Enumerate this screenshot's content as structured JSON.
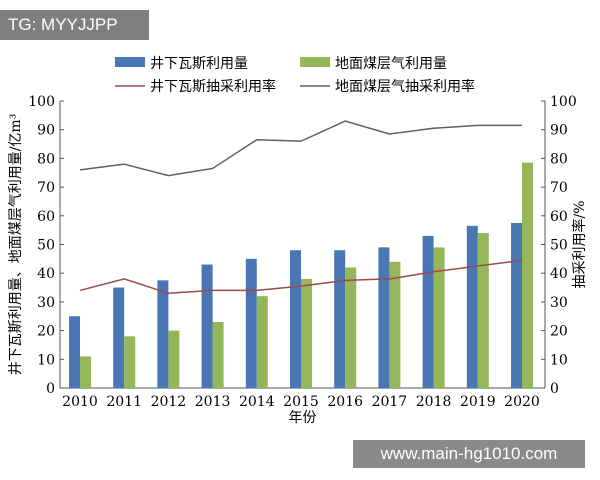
{
  "watermarks": {
    "top": "TG: MYYJJPP",
    "bottom": "www.main-hg1010.com"
  },
  "chart_data": {
    "type": "bar",
    "categories": [
      "2010",
      "2011",
      "2012",
      "2013",
      "2014",
      "2015",
      "2016",
      "2017",
      "2018",
      "2019",
      "2020"
    ],
    "xlabel": "年份",
    "ylabel": "井下瓦斯利用量、地面煤层气利用量/亿m³",
    "y2label": "抽采利用率/%",
    "ylim": [
      0,
      100
    ],
    "y2lim": [
      0,
      100
    ],
    "yticks": [
      0,
      10,
      20,
      30,
      40,
      50,
      60,
      70,
      80,
      90,
      100
    ],
    "legend": "top",
    "series": [
      {
        "name": "井下瓦斯利用量",
        "kind": "bar",
        "axis": "left",
        "color": "#4a76b4",
        "values": [
          25,
          35,
          37.5,
          43,
          45,
          48,
          48,
          49,
          53,
          56.5,
          57.5
        ]
      },
      {
        "name": "地面煤层气利用量",
        "kind": "bar",
        "axis": "left",
        "color": "#96b65a",
        "values": [
          11,
          18,
          20,
          23,
          32,
          38,
          42,
          44,
          49,
          54,
          78.5
        ]
      },
      {
        "name": "井下瓦斯抽采利用率",
        "kind": "line",
        "axis": "right",
        "color": "#9b4a4a",
        "values": [
          34,
          38,
          33,
          34,
          34,
          35.5,
          37.5,
          38,
          40.5,
          42.5,
          44.5
        ]
      },
      {
        "name": "地面煤层气抽采利用率",
        "kind": "line",
        "axis": "right",
        "color": "#606060",
        "values": [
          76,
          78,
          74,
          76.5,
          86.5,
          86,
          93,
          88.5,
          90.5,
          91.5,
          91.5
        ]
      }
    ]
  }
}
